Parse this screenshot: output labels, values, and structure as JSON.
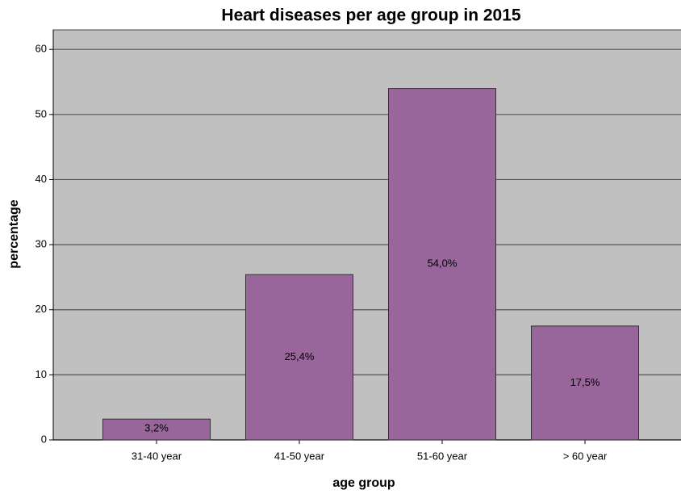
{
  "chart_data": {
    "type": "bar",
    "title": "Heart diseases per age group in 2015",
    "x_label": "age group",
    "y_label": "percentage",
    "categories": [
      "31-40 year",
      "41-50 year",
      "51-60 year",
      "> 60 year"
    ],
    "values": [
      3.2,
      25.4,
      54.0,
      17.5
    ],
    "value_labels": [
      "3,2%",
      "25,4%",
      "54,0%",
      "17,5%"
    ],
    "color": "#98669a",
    "ylim": [
      0,
      63
    ],
    "yticks": [
      0,
      10,
      20,
      30,
      40,
      50,
      60
    ],
    "grid": true
  }
}
